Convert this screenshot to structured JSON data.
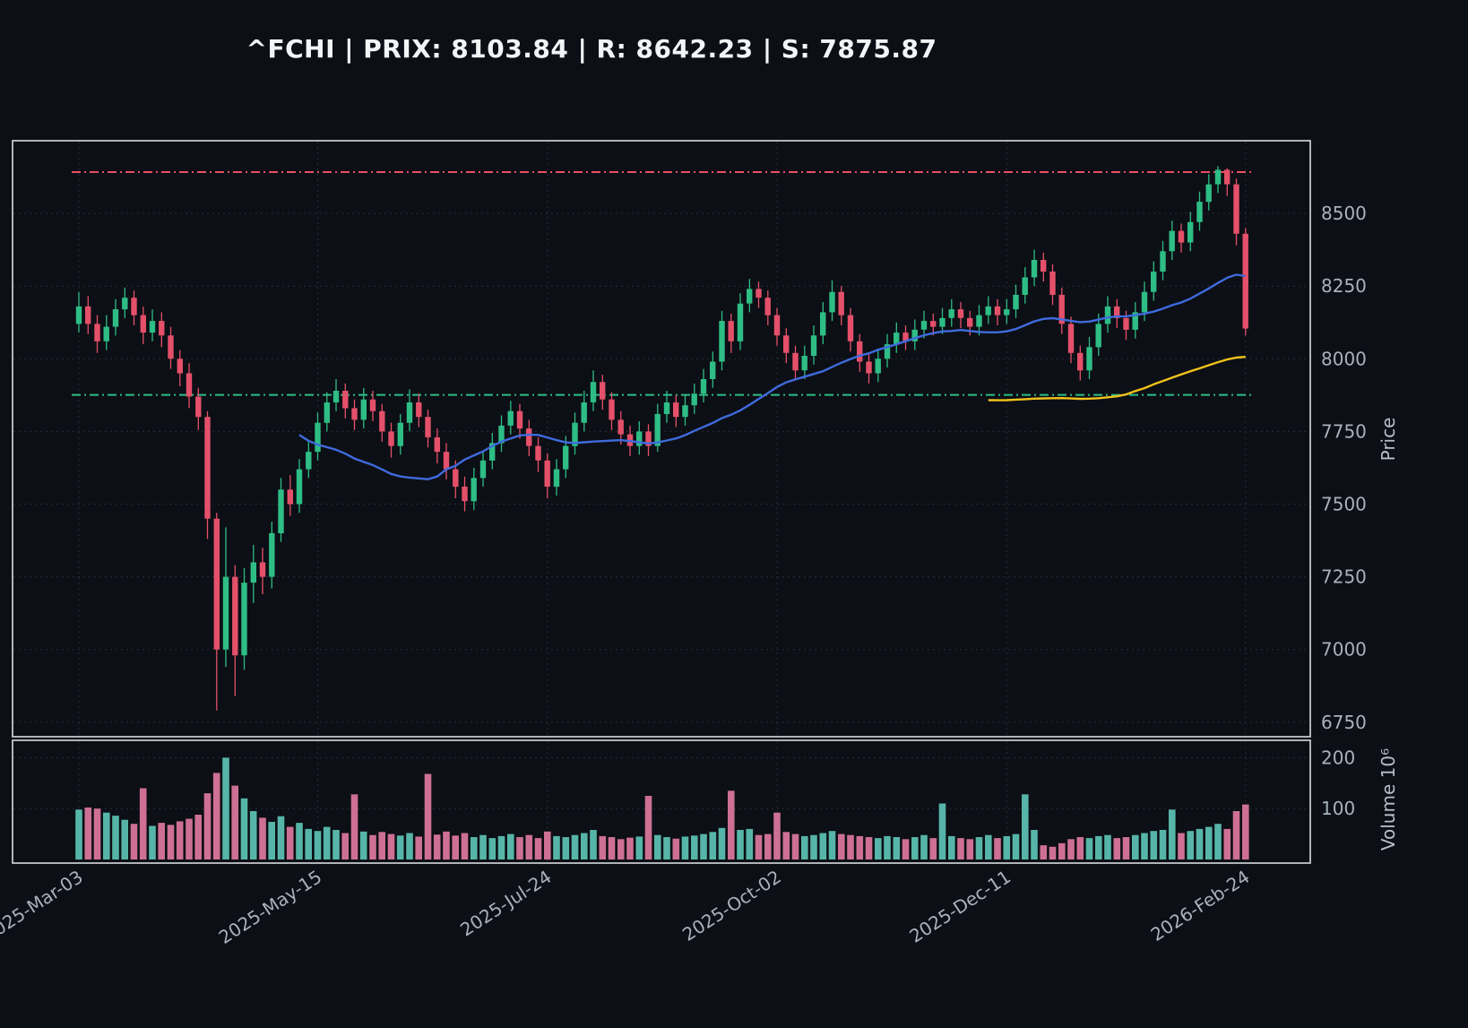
{
  "header": {
    "title": "^FCHI | PRIX: 8103.84 | R: 8642.23 | S: 7875.87"
  },
  "colors": {
    "background": "#0c0f15",
    "candle_up": "#2ebd85",
    "candle_down": "#e4506a",
    "volume_up": "#5ec8b8",
    "volume_down": "#e27ba1",
    "sma_fast": "#3f6bdd",
    "sma_slow": "#f2c21c",
    "resistance": "#e85062",
    "support": "#2ebd85",
    "grid": "#262c38",
    "text": "#a9b2bd"
  },
  "chart_data": {
    "type": "candlestick",
    "symbol": "^FCHI",
    "last_price": 8103.84,
    "resistance": 8642.23,
    "support": 7875.87,
    "legend_position": "none",
    "grid": true,
    "price_axis": {
      "label": "Price",
      "side": "right",
      "ticks": [
        6750,
        7000,
        7250,
        7500,
        7750,
        8000,
        8250,
        8500
      ],
      "range": [
        6700,
        8750
      ]
    },
    "volume_axis": {
      "label": "Volume  10⁶",
      "side": "right",
      "ticks": [
        100,
        200
      ],
      "range": [
        0,
        220
      ]
    },
    "x_ticks": [
      {
        "label": "2025-Mar-03",
        "index": 0
      },
      {
        "label": "2025-May-15",
        "index": 26
      },
      {
        "label": "2025-Jul-24",
        "index": 51
      },
      {
        "label": "2025-Oct-02",
        "index": 76
      },
      {
        "label": "2025-Dec-11",
        "index": 101
      },
      {
        "label": "2026-Feb-24",
        "index": 127
      }
    ],
    "levels": [
      {
        "name": "resistance",
        "value": 8642.23,
        "color": "#e85062",
        "style": "dashdot"
      },
      {
        "name": "support",
        "value": 7875.87,
        "color": "#2ebd85",
        "style": "dashdot"
      }
    ],
    "indicators": [
      {
        "name": "sma-fast",
        "period": 25,
        "color": "#3f6bdd"
      },
      {
        "name": "sma-slow",
        "period": 100,
        "color": "#f2c21c"
      }
    ],
    "candles_format": [
      "open",
      "high",
      "low",
      "close",
      "volume_millions"
    ],
    "candles": [
      [
        8120,
        8230,
        8090,
        8180,
        98
      ],
      [
        8180,
        8215,
        8085,
        8120,
        102
      ],
      [
        8120,
        8150,
        8020,
        8060,
        100
      ],
      [
        8060,
        8150,
        8030,
        8110,
        92
      ],
      [
        8110,
        8205,
        8080,
        8170,
        86
      ],
      [
        8170,
        8245,
        8140,
        8210,
        78
      ],
      [
        8210,
        8235,
        8115,
        8150,
        70
      ],
      [
        8150,
        8180,
        8050,
        8090,
        140
      ],
      [
        8090,
        8170,
        8060,
        8130,
        66
      ],
      [
        8130,
        8160,
        8040,
        8080,
        72
      ],
      [
        8080,
        8110,
        7965,
        8000,
        68
      ],
      [
        8000,
        8030,
        7905,
        7950,
        75
      ],
      [
        7950,
        7985,
        7830,
        7870,
        80
      ],
      [
        7870,
        7900,
        7755,
        7800,
        88
      ],
      [
        7800,
        7820,
        7380,
        7450,
        130
      ],
      [
        7450,
        7470,
        6790,
        7000,
        170
      ],
      [
        7000,
        7420,
        6940,
        7250,
        200
      ],
      [
        7250,
        7290,
        6840,
        6980,
        145
      ],
      [
        6980,
        7280,
        6930,
        7230,
        120
      ],
      [
        7230,
        7360,
        7160,
        7300,
        95
      ],
      [
        7300,
        7350,
        7190,
        7250,
        82
      ],
      [
        7250,
        7440,
        7210,
        7400,
        74
      ],
      [
        7400,
        7590,
        7370,
        7550,
        85
      ],
      [
        7550,
        7600,
        7460,
        7500,
        64
      ],
      [
        7500,
        7655,
        7470,
        7620,
        72
      ],
      [
        7620,
        7720,
        7590,
        7680,
        60
      ],
      [
        7680,
        7815,
        7650,
        7780,
        56
      ],
      [
        7780,
        7885,
        7750,
        7850,
        64
      ],
      [
        7850,
        7930,
        7820,
        7890,
        58
      ],
      [
        7890,
        7915,
        7795,
        7830,
        52
      ],
      [
        7830,
        7860,
        7755,
        7790,
        128
      ],
      [
        7790,
        7900,
        7760,
        7860,
        55
      ],
      [
        7860,
        7890,
        7785,
        7820,
        48
      ],
      [
        7820,
        7845,
        7715,
        7750,
        54
      ],
      [
        7750,
        7780,
        7660,
        7700,
        50
      ],
      [
        7700,
        7810,
        7670,
        7780,
        47
      ],
      [
        7780,
        7895,
        7750,
        7850,
        52
      ],
      [
        7850,
        7880,
        7765,
        7800,
        45
      ],
      [
        7800,
        7825,
        7695,
        7730,
        168
      ],
      [
        7730,
        7760,
        7640,
        7680,
        49
      ],
      [
        7680,
        7710,
        7585,
        7620,
        55
      ],
      [
        7620,
        7650,
        7520,
        7560,
        47
      ],
      [
        7560,
        7595,
        7475,
        7510,
        52
      ],
      [
        7510,
        7625,
        7480,
        7590,
        44
      ],
      [
        7590,
        7685,
        7560,
        7650,
        48
      ],
      [
        7650,
        7745,
        7620,
        7710,
        42
      ],
      [
        7710,
        7805,
        7680,
        7770,
        46
      ],
      [
        7770,
        7855,
        7740,
        7820,
        50
      ],
      [
        7820,
        7845,
        7725,
        7760,
        44
      ],
      [
        7760,
        7790,
        7665,
        7700,
        48
      ],
      [
        7700,
        7730,
        7610,
        7650,
        42
      ],
      [
        7650,
        7675,
        7520,
        7560,
        55
      ],
      [
        7560,
        7655,
        7530,
        7620,
        46
      ],
      [
        7620,
        7735,
        7590,
        7700,
        44
      ],
      [
        7700,
        7815,
        7670,
        7780,
        48
      ],
      [
        7780,
        7890,
        7750,
        7850,
        52
      ],
      [
        7850,
        7960,
        7820,
        7920,
        58
      ],
      [
        7920,
        7945,
        7825,
        7860,
        46
      ],
      [
        7860,
        7885,
        7755,
        7790,
        44
      ],
      [
        7790,
        7820,
        7705,
        7740,
        40
      ],
      [
        7740,
        7770,
        7665,
        7700,
        43
      ],
      [
        7700,
        7785,
        7670,
        7750,
        45
      ],
      [
        7750,
        7775,
        7665,
        7700,
        125
      ],
      [
        7700,
        7845,
        7680,
        7810,
        48
      ],
      [
        7810,
        7890,
        7780,
        7850,
        44
      ],
      [
        7850,
        7875,
        7765,
        7800,
        41
      ],
      [
        7800,
        7875,
        7770,
        7840,
        45
      ],
      [
        7840,
        7915,
        7810,
        7880,
        47
      ],
      [
        7880,
        7965,
        7850,
        7930,
        50
      ],
      [
        7930,
        8025,
        7900,
        7990,
        54
      ],
      [
        7990,
        8165,
        7960,
        8130,
        62
      ],
      [
        8130,
        8155,
        8020,
        8060,
        135
      ],
      [
        8060,
        8225,
        8030,
        8190,
        58
      ],
      [
        8190,
        8275,
        8160,
        8240,
        60
      ],
      [
        8240,
        8265,
        8175,
        8210,
        48
      ],
      [
        8210,
        8235,
        8115,
        8150,
        50
      ],
      [
        8150,
        8175,
        8045,
        8080,
        92
      ],
      [
        8080,
        8105,
        7985,
        8020,
        54
      ],
      [
        8020,
        8045,
        7925,
        7960,
        50
      ],
      [
        7960,
        8045,
        7930,
        8010,
        46
      ],
      [
        8010,
        8115,
        7980,
        8080,
        48
      ],
      [
        8080,
        8195,
        8050,
        8160,
        52
      ],
      [
        8160,
        8270,
        8130,
        8230,
        56
      ],
      [
        8230,
        8250,
        8115,
        8150,
        50
      ],
      [
        8150,
        8175,
        8025,
        8060,
        48
      ],
      [
        8060,
        8085,
        7955,
        7990,
        46
      ],
      [
        7990,
        8015,
        7915,
        7950,
        44
      ],
      [
        7950,
        8035,
        7920,
        8000,
        42
      ],
      [
        8000,
        8085,
        7970,
        8050,
        46
      ],
      [
        8050,
        8125,
        8020,
        8090,
        44
      ],
      [
        8090,
        8115,
        8030,
        8060,
        40
      ],
      [
        8060,
        8135,
        8030,
        8100,
        44
      ],
      [
        8100,
        8165,
        8070,
        8130,
        48
      ],
      [
        8130,
        8155,
        8080,
        8110,
        42
      ],
      [
        8110,
        8175,
        8085,
        8140,
        110
      ],
      [
        8140,
        8205,
        8110,
        8170,
        46
      ],
      [
        8170,
        8195,
        8105,
        8140,
        42
      ],
      [
        8140,
        8165,
        8080,
        8110,
        40
      ],
      [
        8110,
        8185,
        8080,
        8150,
        44
      ],
      [
        8150,
        8215,
        8120,
        8180,
        48
      ],
      [
        8180,
        8205,
        8115,
        8150,
        42
      ],
      [
        8150,
        8205,
        8120,
        8170,
        46
      ],
      [
        8170,
        8255,
        8140,
        8220,
        50
      ],
      [
        8220,
        8315,
        8190,
        8280,
        128
      ],
      [
        8280,
        8375,
        8250,
        8340,
        58
      ],
      [
        8340,
        8365,
        8265,
        8300,
        28
      ],
      [
        8300,
        8325,
        8185,
        8220,
        25
      ],
      [
        8220,
        8245,
        8085,
        8120,
        32
      ],
      [
        8120,
        8145,
        7985,
        8020,
        40
      ],
      [
        8020,
        8045,
        7925,
        7960,
        44
      ],
      [
        7960,
        8075,
        7930,
        8040,
        42
      ],
      [
        8040,
        8155,
        8010,
        8120,
        46
      ],
      [
        8120,
        8215,
        8090,
        8180,
        48
      ],
      [
        8180,
        8205,
        8105,
        8140,
        42
      ],
      [
        8140,
        8165,
        8065,
        8100,
        44
      ],
      [
        8100,
        8195,
        8070,
        8160,
        48
      ],
      [
        8160,
        8265,
        8130,
        8230,
        52
      ],
      [
        8230,
        8335,
        8200,
        8300,
        56
      ],
      [
        8300,
        8405,
        8270,
        8370,
        58
      ],
      [
        8370,
        8475,
        8340,
        8440,
        98
      ],
      [
        8440,
        8465,
        8365,
        8400,
        52
      ],
      [
        8400,
        8505,
        8370,
        8470,
        56
      ],
      [
        8470,
        8575,
        8440,
        8540,
        60
      ],
      [
        8540,
        8635,
        8510,
        8600,
        64
      ],
      [
        8600,
        8662,
        8570,
        8650,
        70
      ],
      [
        8650,
        8655,
        8560,
        8600,
        60
      ],
      [
        8600,
        8620,
        8390,
        8430,
        95
      ],
      [
        8430,
        8450,
        8080,
        8104,
        108
      ]
    ]
  }
}
